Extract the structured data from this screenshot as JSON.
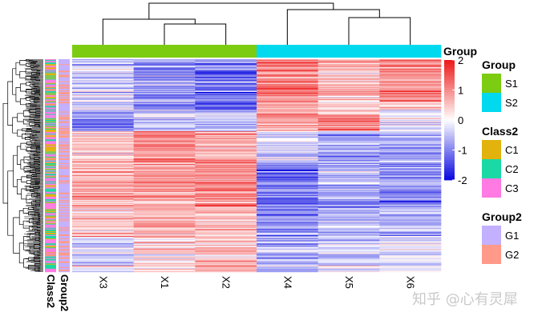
{
  "chart_data": {
    "type": "heatmap",
    "columns": [
      "X3",
      "X1",
      "X2",
      "X4",
      "X5",
      "X6"
    ],
    "column_group": [
      "S1",
      "S1",
      "S1",
      "S2",
      "S2",
      "S2"
    ],
    "group_colors": {
      "S1": "#7ccc12",
      "S2": "#00d9ee"
    },
    "top_annotation_label": "Group",
    "row_annotations": [
      "Class2",
      "Group2"
    ],
    "color_scale": {
      "min": -2,
      "max": 2,
      "low": "#0b0be0",
      "mid": "#ffffff",
      "high": "#ee1a1a",
      "ticks": [
        2,
        1,
        0,
        -1,
        -2
      ],
      "tick_labels": [
        "2",
        "1",
        "0",
        "-1",
        "-2"
      ]
    },
    "n_rows": 260,
    "row_blocks": [
      {
        "fraction": 0.02,
        "values": [
          -0.5,
          -0.6,
          -0.7,
          1.2,
          0.9,
          1.3
        ]
      },
      {
        "fraction": 0.22,
        "values": [
          -0.3,
          -0.9,
          -1.1,
          1.2,
          0.6,
          1.0
        ]
      },
      {
        "fraction": 0.1,
        "values": [
          -0.9,
          -0.4,
          -0.4,
          0.8,
          1.0,
          -0.2
        ]
      },
      {
        "fraction": 0.14,
        "values": [
          0.4,
          1.0,
          0.7,
          -0.3,
          -0.8,
          -0.9
        ]
      },
      {
        "fraction": 0.22,
        "values": [
          0.7,
          0.9,
          1.1,
          -1.1,
          -0.7,
          -0.8
        ]
      },
      {
        "fraction": 0.14,
        "values": [
          0.5,
          0.8,
          0.6,
          -0.9,
          -0.5,
          -0.6
        ]
      },
      {
        "fraction": 0.16,
        "values": [
          -0.2,
          0.3,
          0.6,
          -0.6,
          -0.3,
          -0.2
        ]
      }
    ],
    "class2_colors": {
      "C1": "#e2b20d",
      "C2": "#1ad9a4",
      "C3": "#ff7ae2"
    },
    "group2_colors": {
      "G1": "#c3b0ff",
      "G2": "#ff9a8a"
    }
  },
  "legend": {
    "group": {
      "title": "Group",
      "items": [
        {
          "label": "S1",
          "color": "#7ccc12"
        },
        {
          "label": "S2",
          "color": "#00d9ee"
        }
      ]
    },
    "class2": {
      "title": "Class2",
      "items": [
        {
          "label": "C1",
          "color": "#e2b20d"
        },
        {
          "label": "C2",
          "color": "#1ad9a4"
        },
        {
          "label": "C3",
          "color": "#ff7ae2"
        }
      ]
    },
    "group2": {
      "title": "Group2",
      "items": [
        {
          "label": "G1",
          "color": "#c3b0ff"
        },
        {
          "label": "G2",
          "color": "#ff9a8a"
        }
      ]
    }
  },
  "watermark": "知乎 @心有灵犀"
}
